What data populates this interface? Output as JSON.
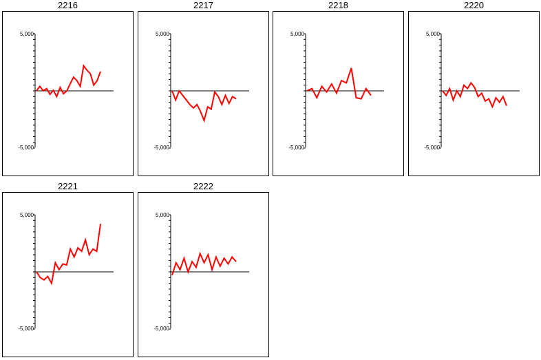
{
  "chart_data": [
    {
      "type": "line",
      "title": "2216",
      "ylim": [
        -5000,
        5000
      ],
      "ytick_labels": [
        "5,000",
        "-5,000"
      ],
      "series": [
        {
          "color": "#ff0000",
          "values": [
            0,
            400,
            0,
            200,
            -300,
            50,
            -500,
            300,
            -250,
            0,
            600,
            1200,
            900,
            400,
            2200,
            1800,
            1500,
            500,
            900,
            1700
          ]
        }
      ]
    },
    {
      "type": "line",
      "title": "2217",
      "ylim": [
        -5000,
        5000
      ],
      "ytick_labels": [
        "5,000",
        "-5,000"
      ],
      "series": [
        {
          "color": "#ff0000",
          "values": [
            0,
            -800,
            0,
            -400,
            -800,
            -1200,
            -1500,
            -1200,
            -1800,
            -2600,
            -1400,
            -1600,
            -100,
            -500,
            -1200,
            -400,
            -1100,
            -500,
            -700
          ]
        }
      ]
    },
    {
      "type": "line",
      "title": "2218",
      "ylim": [
        -5000,
        5000
      ],
      "ytick_labels": [
        "5,000",
        "-5,000"
      ],
      "series": [
        {
          "color": "#ff0000",
          "values": [
            0,
            200,
            -600,
            400,
            -100,
            600,
            -200,
            900,
            700,
            2000,
            -600,
            -700,
            200,
            -400
          ]
        }
      ]
    },
    {
      "type": "line",
      "title": "2220",
      "ylim": [
        -5000,
        5000
      ],
      "ytick_labels": [
        "5,000",
        "-5,000"
      ],
      "series": [
        {
          "color": "#ff0000",
          "values": [
            0,
            -400,
            200,
            -800,
            0,
            -500,
            500,
            200,
            700,
            300,
            -500,
            -200,
            -900,
            -700,
            -1400,
            -600,
            -1000,
            -500,
            -1300
          ]
        }
      ]
    },
    {
      "type": "line",
      "title": "2221",
      "ylim": [
        -5000,
        5000
      ],
      "ytick_labels": [
        "5,000",
        "-5,000"
      ],
      "series": [
        {
          "color": "#ff0000",
          "values": [
            0,
            -500,
            -700,
            -400,
            -1000,
            800,
            200,
            700,
            600,
            2000,
            1300,
            2100,
            1800,
            2800,
            1500,
            2000,
            1800,
            4200
          ]
        }
      ]
    },
    {
      "type": "line",
      "title": "2222",
      "ylim": [
        -5000,
        5000
      ],
      "ytick_labels": [
        "5,000",
        "-5,000"
      ],
      "series": [
        {
          "color": "#ff0000",
          "values": [
            -300,
            800,
            200,
            1200,
            0,
            900,
            400,
            1600,
            800,
            1500,
            200,
            1300,
            500,
            1200,
            700,
            1300,
            900
          ]
        }
      ]
    }
  ]
}
